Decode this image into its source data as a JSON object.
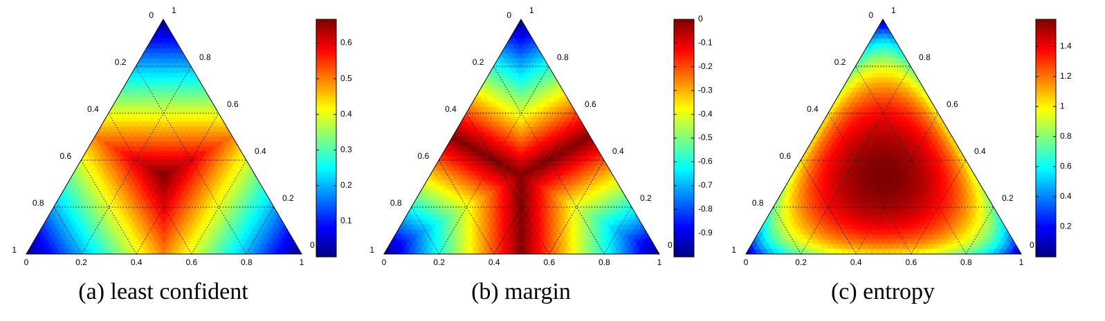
{
  "chart_data": [
    {
      "type": "ternary",
      "caption": "(a) least confident",
      "ticks": [
        0,
        0.2,
        0.4,
        0.6,
        0.8,
        1
      ],
      "colormap": "jet",
      "clim": [
        0,
        0.667
      ],
      "cticks": [
        0.1,
        0.2,
        0.3,
        0.4,
        0.5,
        0.6
      ]
    },
    {
      "type": "ternary",
      "caption": "(b) margin",
      "ticks": [
        0,
        0.2,
        0.4,
        0.6,
        0.8,
        1
      ],
      "colormap": "jet",
      "clim": [
        -1,
        0
      ],
      "cticks": [
        -0.9,
        -0.8,
        -0.7,
        -0.6,
        -0.5,
        -0.4,
        -0.3,
        -0.2,
        -0.1,
        0
      ]
    },
    {
      "type": "ternary",
      "caption": "(c) entropy",
      "ticks": [
        0,
        0.2,
        0.4,
        0.6,
        0.8,
        1
      ],
      "colormap": "jet",
      "clim": [
        0,
        1.58
      ],
      "cticks": [
        0.2,
        0.4,
        0.6,
        0.8,
        1,
        1.2,
        1.4
      ]
    }
  ]
}
